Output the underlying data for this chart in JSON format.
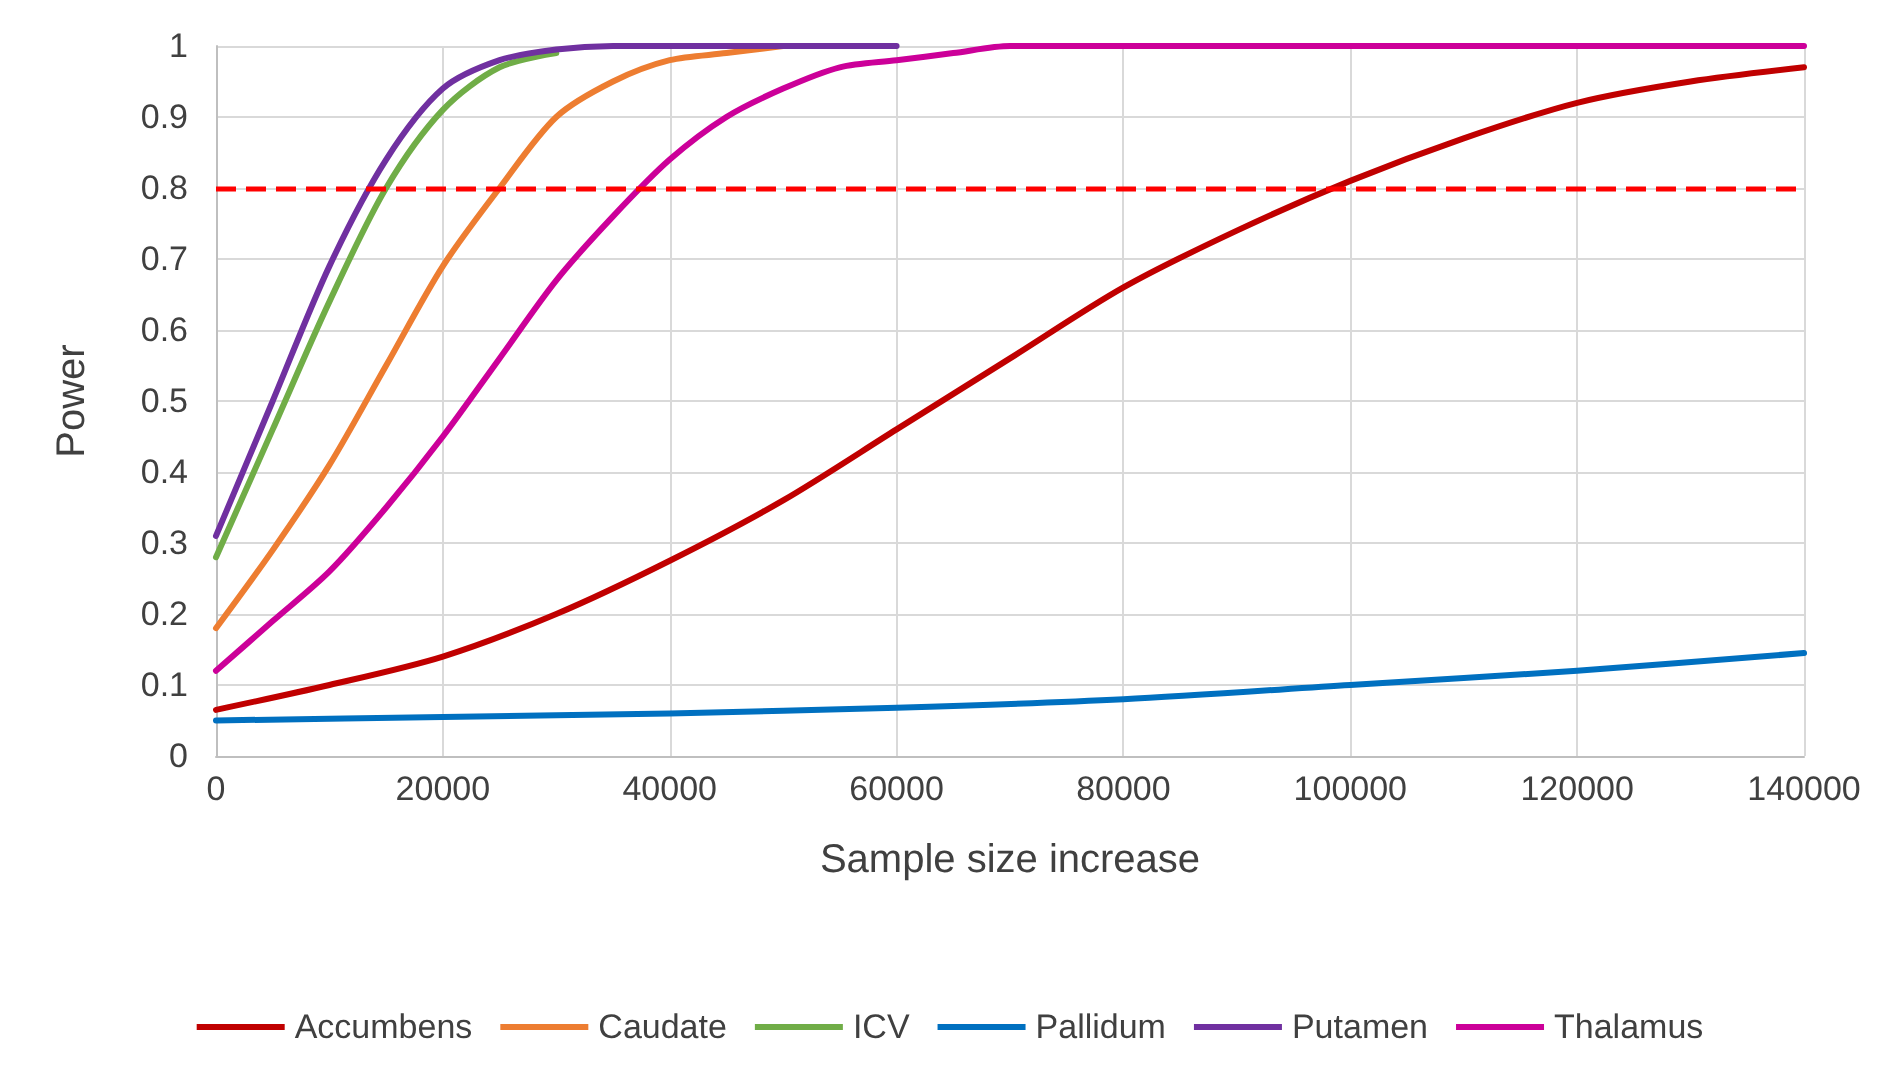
{
  "chart_data": {
    "type": "line",
    "xlabel": "Sample size increase",
    "ylabel": "Power",
    "xlim": [
      0,
      140000
    ],
    "xticks": [
      0,
      20000,
      40000,
      60000,
      80000,
      100000,
      120000,
      140000
    ],
    "ylim": [
      0,
      1
    ],
    "yticks": [
      0,
      0.1,
      0.2,
      0.3,
      0.4,
      0.5,
      0.6,
      0.7,
      0.8,
      0.9,
      1
    ],
    "grid": true,
    "legend": "bottom",
    "marker": "none",
    "line_style": "solid",
    "ref_lines": [
      {
        "axis": "y",
        "value": 0.8,
        "color": "#ff0000",
        "line_style": "dashed"
      }
    ],
    "series": [
      {
        "name": "Accumbens",
        "color": "#c00000",
        "x": [
          0,
          10000,
          20000,
          30000,
          40000,
          50000,
          60000,
          70000,
          80000,
          90000,
          100000,
          110000,
          120000,
          130000,
          140000
        ],
        "values": [
          0.065,
          0.1,
          0.14,
          0.2,
          0.275,
          0.36,
          0.46,
          0.56,
          0.66,
          0.74,
          0.81,
          0.87,
          0.92,
          0.95,
          0.97
        ]
      },
      {
        "name": "Caudate",
        "color": "#ed7d31",
        "x": [
          0,
          5000,
          10000,
          15000,
          20000,
          25000,
          30000,
          35000,
          40000,
          45000,
          50000
        ],
        "values": [
          0.18,
          0.29,
          0.41,
          0.55,
          0.69,
          0.8,
          0.9,
          0.95,
          0.98,
          0.99,
          1
        ]
      },
      {
        "name": "ICV",
        "color": "#70ad47",
        "x": [
          0,
          5000,
          10000,
          15000,
          20000,
          25000,
          30000
        ],
        "values": [
          0.28,
          0.46,
          0.64,
          0.8,
          0.91,
          0.97,
          0.99
        ]
      },
      {
        "name": "Pallidum",
        "color": "#0070c0",
        "x": [
          0,
          20000,
          40000,
          60000,
          80000,
          100000,
          120000,
          140000
        ],
        "values": [
          0.05,
          0.055,
          0.06,
          0.068,
          0.08,
          0.1,
          0.12,
          0.145
        ]
      },
      {
        "name": "Putamen",
        "color": "#7030a0",
        "x": [
          0,
          5000,
          10000,
          15000,
          20000,
          25000,
          30000,
          35000,
          40000,
          50000,
          60000
        ],
        "values": [
          0.31,
          0.5,
          0.69,
          0.84,
          0.94,
          0.98,
          0.995,
          1,
          1,
          1,
          1
        ]
      },
      {
        "name": "Thalamus",
        "color": "#cc0099",
        "x": [
          0,
          5000,
          10000,
          15000,
          20000,
          25000,
          30000,
          35000,
          40000,
          45000,
          50000,
          55000,
          60000,
          65000,
          70000,
          80000,
          100000,
          120000,
          140000
        ],
        "values": [
          0.12,
          0.19,
          0.26,
          0.35,
          0.45,
          0.56,
          0.67,
          0.76,
          0.84,
          0.9,
          0.94,
          0.97,
          0.98,
          0.99,
          1,
          1,
          1,
          1,
          1
        ]
      }
    ]
  }
}
